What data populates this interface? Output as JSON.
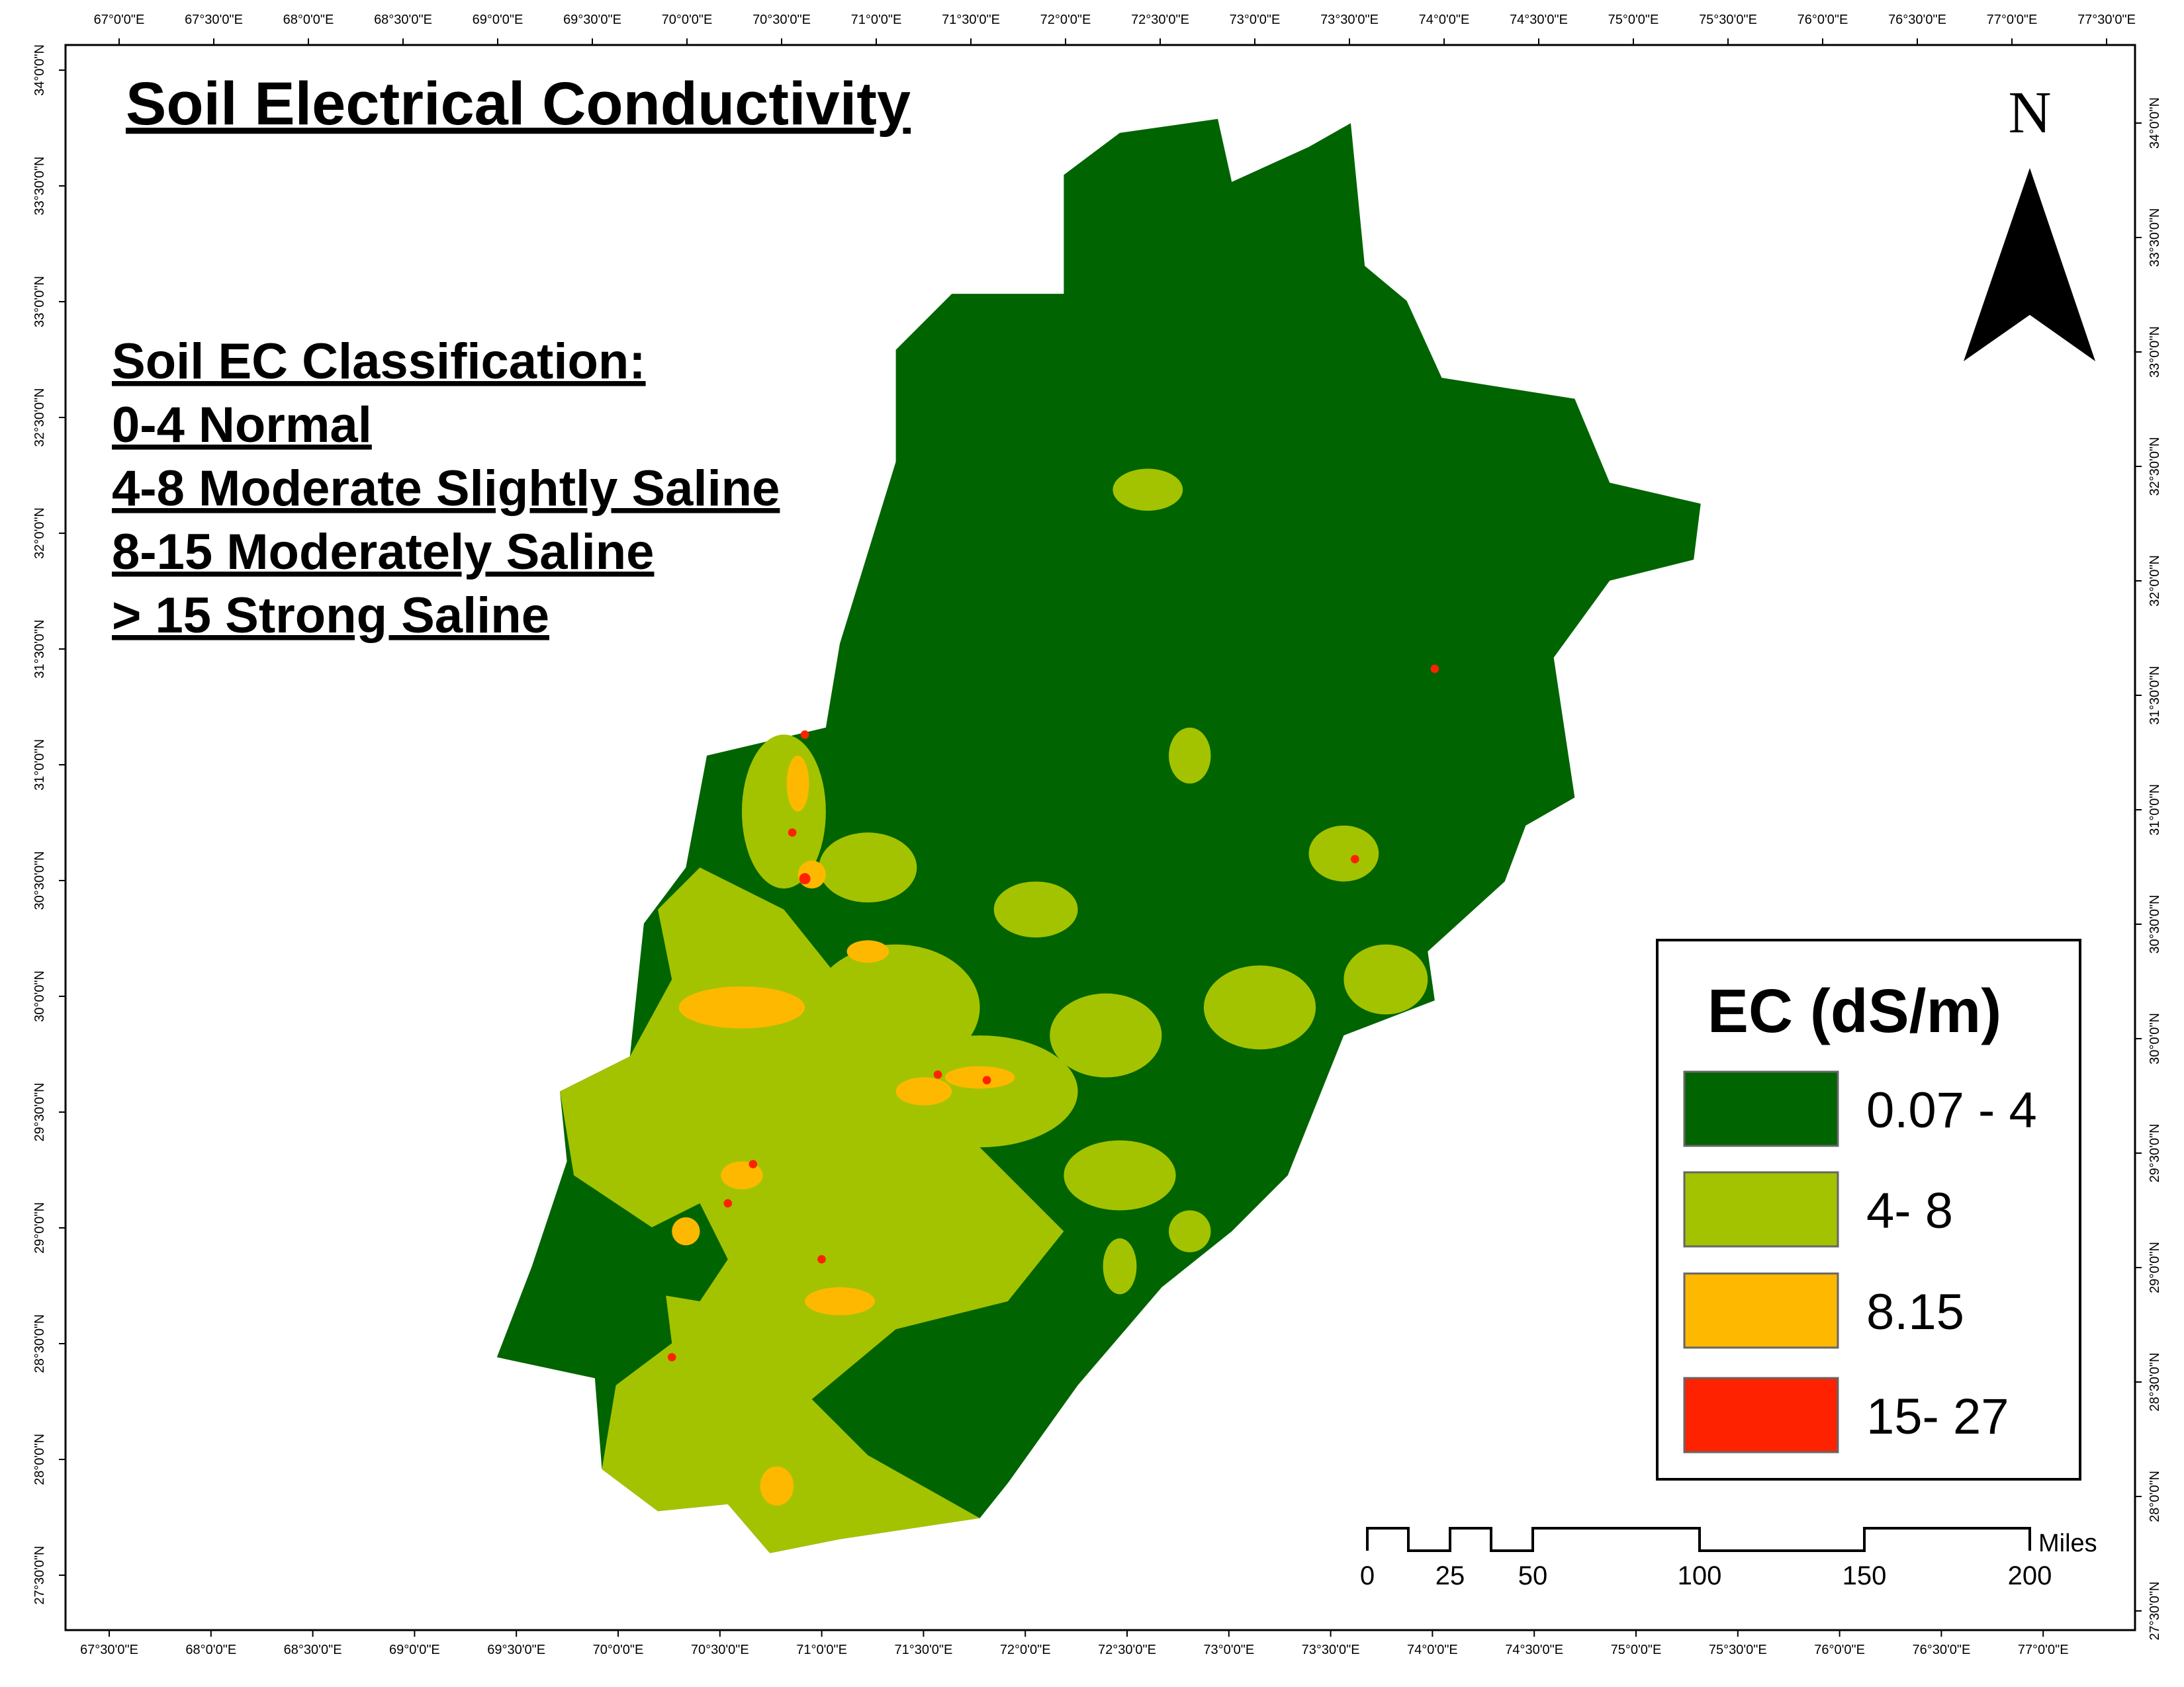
{
  "title": "Soil Electrical Conductivity",
  "classification": [
    "Soil EC Classification:",
    "0-4 Normal",
    "4-8 Moderate Slightly Saline",
    "8-15 Moderately Saline",
    "> 15 Strong Saline"
  ],
  "north": "N",
  "legend": {
    "title": "EC (dS/m)",
    "items": [
      {
        "label": "0.07 - 4",
        "color": "#006400"
      },
      {
        "label": "4- 8",
        "color": "#a3c300"
      },
      {
        "label": "8.15",
        "color": "#ffb800"
      },
      {
        "label": "15- 27",
        "color": "#ff2200"
      }
    ]
  },
  "scale_bar": {
    "labels": [
      0,
      25,
      50,
      100,
      150,
      200
    ],
    "unit": "Miles"
  },
  "graticule": {
    "top": [
      "67°0'0\"E",
      "67°30'0\"E",
      "68°0'0\"E",
      "68°30'0\"E",
      "69°0'0\"E",
      "69°30'0\"E",
      "70°0'0\"E",
      "70°30'0\"E",
      "71°0'0\"E",
      "71°30'0\"E",
      "72°0'0\"E",
      "72°30'0\"E",
      "73°0'0\"E",
      "73°30'0\"E",
      "74°0'0\"E",
      "74°30'0\"E",
      "75°0'0\"E",
      "75°30'0\"E",
      "76°0'0\"E",
      "76°30'0\"E",
      "77°0'0\"E",
      "77°30'0\"E"
    ],
    "bottom": [
      "67°30'0\"E",
      "68°0'0\"E",
      "68°30'0\"E",
      "69°0'0\"E",
      "69°30'0\"E",
      "70°0'0\"E",
      "70°30'0\"E",
      "71°0'0\"E",
      "71°30'0\"E",
      "72°0'0\"E",
      "72°30'0\"E",
      "73°0'0\"E",
      "73°30'0\"E",
      "74°0'0\"E",
      "74°30'0\"E",
      "75°0'0\"E",
      "75°30'0\"E",
      "76°0'0\"E",
      "76°30'0\"E",
      "77°0'0\"E"
    ],
    "left": [
      "34°0'0\"N",
      "33°30'0\"N",
      "33°0'0\"N",
      "32°30'0\"N",
      "32°0'0\"N",
      "31°30'0\"N",
      "31°0'0\"N",
      "30°30'0\"N",
      "30°0'0\"N",
      "29°30'0\"N",
      "29°0'0\"N",
      "28°30'0\"N",
      "28°0'0\"N",
      "27°30'0\"N"
    ],
    "right": [
      "34°0'0\"N",
      "33°30'0\"N",
      "33°0'0\"N",
      "32°30'0\"N",
      "32°0'0\"N",
      "31°30'0\"N",
      "31°0'0\"N",
      "30°30'0\"N",
      "30°0'0\"N",
      "29°30'0\"N",
      "29°0'0\"N",
      "28°30'0\"N",
      "28°0'0\"N",
      "27°30'0\"N"
    ]
  }
}
